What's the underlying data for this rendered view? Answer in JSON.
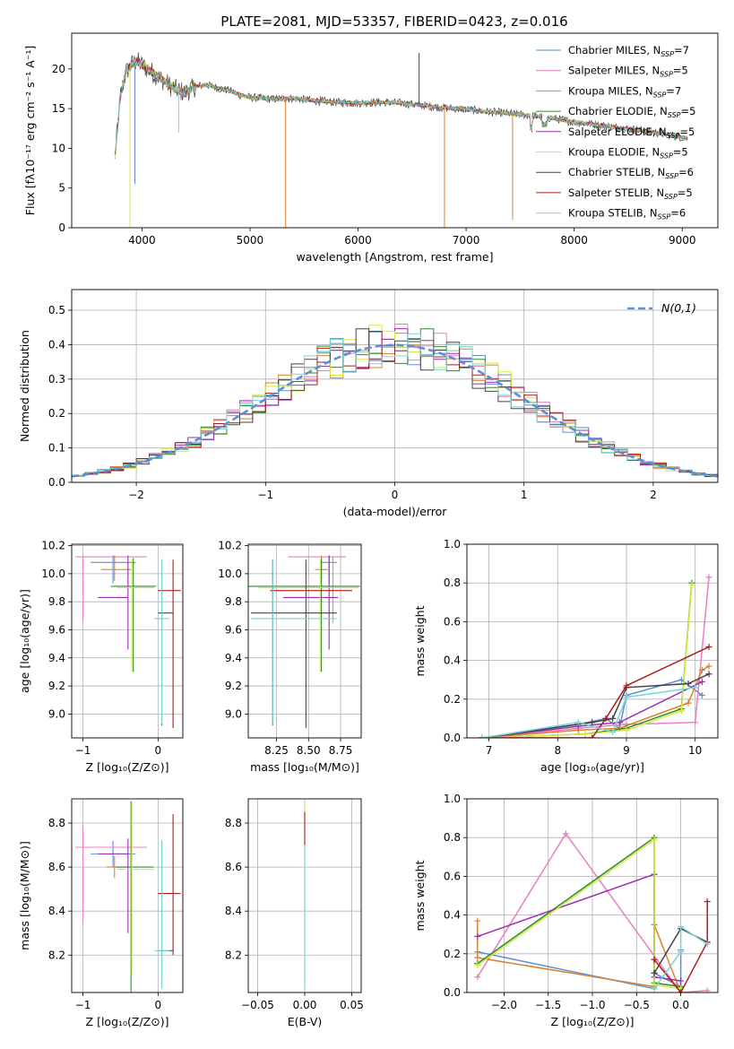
{
  "figure_title": "PLATE=2081, MJD=53357, FIBERID=0423, z=0.016",
  "colors": {
    "Chabrier MILES": "#5b8fd6",
    "Salpeter MILES": "#e87fbf",
    "Kroupa MILES": "#d9812a",
    "Chabrier ELODIE": "#2f8a2a",
    "Salpeter ELODIE": "#9a2fb0",
    "Kroupa ELODIE": "#d6e83a",
    "Chabrier STELIB": "#444444",
    "Salpeter STELIB": "#b01c1c",
    "Kroupa STELIB": "#72d6d6"
  },
  "chart_data": [
    {
      "id": "spectrum",
      "type": "line",
      "title": "PLATE=2081, MJD=53357, FIBERID=0423, z=0.016",
      "xlabel": "wavelength [Angstrom, rest frame]",
      "ylabel": "Flux [fλ10⁻¹⁷ erg cm⁻² s⁻¹ A⁻¹]",
      "xlim": [
        3350,
        9330
      ],
      "ylim": [
        0,
        24.5
      ],
      "xticks": [
        4000,
        5000,
        6000,
        7000,
        8000,
        9000
      ],
      "yticks": [
        0,
        5,
        10,
        15,
        20
      ],
      "legend_position": "top-right",
      "legend": [
        "Chabrier MILES, N_SSP=7",
        "Salpeter MILES, N_SSP=5",
        "Kroupa MILES, N_SSP=7",
        "Chabrier ELODIE, N_SSP=5",
        "Salpeter ELODIE, N_SSP=5",
        "Kroupa ELODIE, N_SSP=5",
        "Chabrier STELIB, N_SSP=6",
        "Salpeter STELIB, N_SSP=5",
        "Kroupa STELIB, N_SSP=6"
      ],
      "legend_parts": [
        [
          "Chabrier MILES, N",
          "SSP",
          "=7"
        ],
        [
          "Salpeter MILES, N",
          "SSP",
          "=5"
        ],
        [
          "Kroupa MILES, N",
          "SSP",
          "=7"
        ],
        [
          "Chabrier ELODIE, N",
          "SSP",
          "=5"
        ],
        [
          "Salpeter ELODIE, N",
          "SSP",
          "=5"
        ],
        [
          "Kroupa ELODIE, N",
          "SSP",
          "=5"
        ],
        [
          "Chabrier STELIB, N",
          "SSP",
          "=6"
        ],
        [
          "Salpeter STELIB, N",
          "SSP",
          "=5"
        ],
        [
          "Kroupa STELIB, N",
          "SSP",
          "=6"
        ]
      ],
      "data_x": [
        3750,
        3800,
        3850,
        3900,
        3950,
        4000,
        4100,
        4200,
        4300,
        4400,
        4500,
        4600,
        4700,
        4800,
        4900,
        5000,
        5200,
        5400,
        5600,
        5800,
        6000,
        6200,
        6400,
        6600,
        6800,
        7000,
        7200,
        7400,
        7600,
        7800,
        8000,
        8200,
        8400,
        8600,
        8800,
        9000,
        9050
      ],
      "data_y": [
        9.0,
        16.5,
        19.5,
        20.5,
        21.0,
        20.5,
        19.5,
        18.5,
        17.5,
        17.0,
        17.8,
        18.0,
        17.6,
        17.3,
        16.8,
        16.4,
        16.2,
        16.3,
        16.0,
        15.8,
        15.7,
        15.8,
        15.7,
        15.4,
        15.1,
        14.9,
        14.6,
        14.4,
        14.1,
        13.8,
        13.3,
        13.0,
        12.6,
        12.3,
        11.9,
        11.4,
        11.2
      ],
      "spikes": [
        [
          3890,
          0.0
        ],
        [
          3935,
          5.5
        ],
        [
          4340,
          12.0
        ],
        [
          5330,
          0.0
        ],
        [
          6565,
          22.0
        ],
        [
          6800,
          0.0
        ],
        [
          7430,
          1.0
        ]
      ]
    },
    {
      "id": "residuals",
      "type": "histogram",
      "xlabel": "(data-model)/error",
      "ylabel": "Normed distribution",
      "xlim": [
        -2.5,
        2.5
      ],
      "ylim": [
        0,
        0.56
      ],
      "xticks": [
        -2,
        -1,
        0,
        1,
        2
      ],
      "yticks": [
        0.0,
        0.1,
        0.2,
        0.3,
        0.4,
        0.5
      ],
      "legend_position": "top-right",
      "legend": [
        "N(0,1)"
      ],
      "reference": {
        "name": "N(0,1)",
        "mu": 0,
        "sigma": 1
      },
      "bin_width": 0.1
    },
    {
      "id": "z_age",
      "type": "errorbar",
      "xlabel": "Z [log₁₀(Z/Z⊙)]",
      "ylabel": "age  [log₁₀(age/yr)]",
      "xlim": [
        -1.15,
        0.33
      ],
      "ylim": [
        8.83,
        10.21
      ],
      "xticks": [
        -1,
        0
      ],
      "xtick_labels": [
        "−1",
        "0"
      ],
      "yticks": [
        9.0,
        9.2,
        9.4,
        9.6,
        9.8,
        10.0,
        10.2
      ],
      "points": [
        {
          "model": "Chabrier MILES",
          "x": -0.6,
          "y": 10.08,
          "xerr": [
            0.3,
            0.3
          ],
          "yerr": [
            0.15,
            0.05
          ]
        },
        {
          "model": "Salpeter MILES",
          "x": -1.0,
          "y": 10.12,
          "xerr": [
            0.1,
            0.85
          ],
          "yerr": [
            0.47,
            0.0
          ]
        },
        {
          "model": "Kroupa MILES",
          "x": -0.58,
          "y": 10.03,
          "xerr": [
            0.18,
            0.22
          ],
          "yerr": [
            0.08,
            0.1
          ]
        },
        {
          "model": "Chabrier ELODIE",
          "x": -0.33,
          "y": 9.91,
          "xerr": [
            0.3,
            0.3
          ],
          "yerr": [
            0.61,
            0.2
          ]
        },
        {
          "model": "Salpeter ELODIE",
          "x": -0.4,
          "y": 9.83,
          "xerr": [
            0.4,
            0.0
          ],
          "yerr": [
            0.37,
            0.3
          ]
        },
        {
          "model": "Kroupa ELODIE",
          "x": -0.35,
          "y": 9.9,
          "xerr": [
            0.2,
            0.3
          ],
          "yerr": [
            0.6,
            0.2
          ]
        },
        {
          "model": "Chabrier STELIB",
          "x": 0.05,
          "y": 9.72,
          "xerr": [
            0.05,
            0.15
          ],
          "yerr": [
            0.8,
            0.38
          ]
        },
        {
          "model": "Salpeter STELIB",
          "x": 0.2,
          "y": 9.88,
          "xerr": [
            0.2,
            0.1
          ],
          "yerr": [
            0.98,
            0.22
          ]
        },
        {
          "model": "Kroupa STELIB",
          "x": 0.05,
          "y": 9.68,
          "xerr": [
            0.1,
            0.1
          ],
          "yerr": [
            0.75,
            0.42
          ]
        }
      ]
    },
    {
      "id": "mass_age",
      "type": "errorbar",
      "xlabel": "mass [log₁₀(M/M⊙)]",
      "ylabel": "",
      "xlim": [
        8.03,
        8.91
      ],
      "ylim": [
        8.83,
        10.21
      ],
      "xticks": [
        8.25,
        8.5,
        8.75
      ],
      "xtick_labels": [
        "8.25",
        "8.50",
        "8.75"
      ],
      "yticks": [
        9.0,
        9.2,
        9.4,
        9.6,
        9.8,
        10.0,
        10.2
      ],
      "points": [
        {
          "model": "Chabrier MILES",
          "x": 8.66,
          "y": 10.08,
          "xerr": [
            0.06,
            0.06
          ],
          "yerr": [
            0.15,
            0.05
          ]
        },
        {
          "model": "Salpeter MILES",
          "x": 8.69,
          "y": 10.12,
          "xerr": [
            0.35,
            0.1
          ],
          "yerr": [
            0.47,
            0.0
          ]
        },
        {
          "model": "Kroupa MILES",
          "x": 8.6,
          "y": 10.03,
          "xerr": [
            0.05,
            0.05
          ],
          "yerr": [
            0.08,
            0.1
          ]
        },
        {
          "model": "Chabrier ELODIE",
          "x": 8.6,
          "y": 9.91,
          "xerr": [
            0.57,
            0.3
          ],
          "yerr": [
            0.61,
            0.2
          ]
        },
        {
          "model": "Salpeter ELODIE",
          "x": 8.66,
          "y": 9.83,
          "xerr": [
            0.36,
            0.07
          ],
          "yerr": [
            0.37,
            0.3
          ]
        },
        {
          "model": "Kroupa ELODIE",
          "x": 8.59,
          "y": 9.9,
          "xerr": [
            0.48,
            0.3
          ],
          "yerr": [
            0.6,
            0.2
          ]
        },
        {
          "model": "Chabrier STELIB",
          "x": 8.22,
          "y": 9.72,
          "xerr": [
            0.17,
            0.5
          ],
          "yerr": [
            0.8,
            0.38
          ]
        },
        {
          "model": "Salpeter STELIB",
          "x": 8.48,
          "y": 9.88,
          "xerr": [
            0.28,
            0.36
          ],
          "yerr": [
            0.98,
            0.22
          ]
        },
        {
          "model": "Kroupa STELIB",
          "x": 8.22,
          "y": 9.68,
          "xerr": [
            0.17,
            0.5
          ],
          "yerr": [
            0.75,
            0.42
          ]
        }
      ]
    },
    {
      "id": "age_weight",
      "type": "line",
      "xlabel": "age  [log₁₀(age/yr)]",
      "ylabel": "mass weight",
      "xlim": [
        6.68,
        10.33
      ],
      "ylim": [
        0,
        1.0
      ],
      "xticks": [
        7,
        8,
        9,
        10
      ],
      "yticks": [
        0.0,
        0.2,
        0.4,
        0.6,
        0.8,
        1.0
      ],
      "series": [
        {
          "model": "Chabrier MILES",
          "x": [
            6.9,
            8.3,
            8.7,
            8.9,
            9.0,
            9.8,
            10.1
          ],
          "y": [
            0.0,
            0.07,
            0.1,
            0.05,
            0.22,
            0.3,
            0.22
          ]
        },
        {
          "model": "Salpeter MILES",
          "x": [
            6.9,
            8.3,
            9.0,
            10.0,
            10.2
          ],
          "y": [
            0.0,
            0.05,
            0.07,
            0.08,
            0.83
          ]
        },
        {
          "model": "Kroupa MILES",
          "x": [
            6.9,
            8.3,
            8.9,
            9.9,
            10.1,
            10.2
          ],
          "y": [
            0.0,
            0.04,
            0.05,
            0.18,
            0.35,
            0.37
          ]
        },
        {
          "model": "Chabrier ELODIE",
          "x": [
            6.9,
            8.4,
            9.0,
            9.8,
            9.95
          ],
          "y": [
            0.0,
            0.02,
            0.05,
            0.15,
            0.8
          ]
        },
        {
          "model": "Salpeter ELODIE",
          "x": [
            6.9,
            8.3,
            8.9,
            10.1
          ],
          "y": [
            0.0,
            0.06,
            0.08,
            0.29
          ]
        },
        {
          "model": "Kroupa ELODIE",
          "x": [
            6.9,
            8.4,
            9.0,
            9.8,
            9.95
          ],
          "y": [
            0.0,
            0.02,
            0.04,
            0.14,
            0.79
          ]
        },
        {
          "model": "Chabrier STELIB",
          "x": [
            6.9,
            8.5,
            8.8,
            9.0,
            9.9,
            10.2
          ],
          "y": [
            0.0,
            0.08,
            0.1,
            0.26,
            0.28,
            0.33
          ]
        },
        {
          "model": "Salpeter STELIB",
          "x": [
            6.9,
            8.5,
            8.7,
            9.0,
            10.2
          ],
          "y": [
            0.0,
            0.0,
            0.1,
            0.27,
            0.47
          ]
        },
        {
          "model": "Kroupa STELIB",
          "x": [
            6.9,
            8.3,
            8.8,
            9.0,
            10.0
          ],
          "y": [
            0.0,
            0.08,
            0.03,
            0.21,
            0.26
          ]
        }
      ]
    },
    {
      "id": "z_mass",
      "type": "errorbar",
      "xlabel": "Z [log₁₀(Z/Z⊙)]",
      "ylabel": "mass [log₁₀(M/M⊙)]",
      "xlim": [
        -1.15,
        0.33
      ],
      "ylim": [
        8.03,
        8.91
      ],
      "xticks": [
        -1,
        0
      ],
      "xtick_labels": [
        "−1",
        "0"
      ],
      "yticks": [
        8.2,
        8.4,
        8.6,
        8.8
      ],
      "points": [
        {
          "model": "Chabrier MILES",
          "x": -0.6,
          "y": 8.66,
          "xerr": [
            0.3,
            0.3
          ],
          "yerr": [
            0.06,
            0.06
          ]
        },
        {
          "model": "Salpeter MILES",
          "x": -1.0,
          "y": 8.69,
          "xerr": [
            0.1,
            0.85
          ],
          "yerr": [
            0.35,
            0.1
          ]
        },
        {
          "model": "Kroupa MILES",
          "x": -0.58,
          "y": 8.6,
          "xerr": [
            0.1,
            0.2
          ],
          "yerr": [
            0.05,
            0.05
          ]
        },
        {
          "model": "Chabrier ELODIE",
          "x": -0.36,
          "y": 8.6,
          "xerr": [
            0.2,
            0.3
          ],
          "yerr": [
            0.57,
            0.3
          ]
        },
        {
          "model": "Salpeter ELODIE",
          "x": -0.4,
          "y": 8.66,
          "xerr": [
            0.4,
            0.0
          ],
          "yerr": [
            0.36,
            0.07
          ]
        },
        {
          "model": "Kroupa ELODIE",
          "x": -0.35,
          "y": 8.59,
          "xerr": [
            0.2,
            0.3
          ],
          "yerr": [
            0.48,
            0.3
          ]
        },
        {
          "model": "Chabrier STELIB",
          "x": 0.05,
          "y": 8.22,
          "xerr": [
            0.05,
            0.15
          ],
          "yerr": [
            0.17,
            0.5
          ]
        },
        {
          "model": "Salpeter STELIB",
          "x": 0.2,
          "y": 8.48,
          "xerr": [
            0.2,
            0.1
          ],
          "yerr": [
            0.28,
            0.36
          ]
        },
        {
          "model": "Kroupa STELIB",
          "x": 0.05,
          "y": 8.22,
          "xerr": [
            0.1,
            0.1
          ],
          "yerr": [
            0.17,
            0.5
          ]
        }
      ]
    },
    {
      "id": "ebv_mass",
      "type": "errorbar",
      "xlabel": "E(B-V)",
      "ylabel": "",
      "xlim": [
        -0.06,
        0.06
      ],
      "ylim": [
        8.03,
        8.91
      ],
      "xticks": [
        -0.05,
        0.0,
        0.05
      ],
      "xtick_labels": [
        "−0.05",
        "0.00",
        "0.05"
      ],
      "yticks": [
        8.2,
        8.4,
        8.6,
        8.8
      ],
      "points": [
        {
          "model": "Kroupa ELODIE",
          "x": 0.0,
          "y": 8.7,
          "xerr": [
            0,
            0
          ],
          "yerr": [
            0.64,
            0.18
          ]
        },
        {
          "model": "Salpeter STELIB",
          "x": 0.0,
          "y": 8.8,
          "xerr": [
            0,
            0
          ],
          "yerr": [
            0.1,
            0.05
          ]
        },
        {
          "model": "Kroupa STELIB",
          "x": 0.0,
          "y": 8.45,
          "xerr": [
            0,
            0
          ],
          "yerr": [
            0.4,
            0.25
          ]
        }
      ]
    },
    {
      "id": "z_weight",
      "type": "line",
      "xlabel": "Z [log₁₀(Z/Z⊙)]",
      "ylabel": "mass weight",
      "xlim": [
        -2.42,
        0.42
      ],
      "ylim": [
        0,
        1.0
      ],
      "xticks": [
        -2.0,
        -1.5,
        -1.0,
        -0.5,
        0.0
      ],
      "xtick_labels": [
        "−2.0",
        "−1.5",
        "−1.0",
        "−0.5",
        "0.0"
      ],
      "yticks": [
        0.0,
        0.2,
        0.4,
        0.6,
        0.8,
        1.0
      ],
      "series": [
        {
          "model": "Chabrier MILES",
          "x": [
            -2.3,
            -0.3,
            -0.3,
            0.0,
            0.0
          ],
          "y": [
            0.21,
            0.02,
            0.1,
            0.03,
            0.22
          ]
        },
        {
          "model": "Salpeter MILES",
          "x": [
            -2.3,
            -1.3,
            0.0,
            0.3
          ],
          "y": [
            0.08,
            0.82,
            0.0,
            0.01
          ]
        },
        {
          "model": "Kroupa MILES",
          "x": [
            -2.3,
            -2.3,
            -0.3,
            -0.3,
            0.0
          ],
          "y": [
            0.37,
            0.18,
            0.03,
            0.35,
            0.0
          ]
        },
        {
          "model": "Chabrier ELODIE",
          "x": [
            -2.3,
            -0.3,
            -0.3,
            0.0
          ],
          "y": [
            0.15,
            0.8,
            0.05,
            0.03
          ]
        },
        {
          "model": "Salpeter ELODIE",
          "x": [
            -2.3,
            -0.3,
            -0.3,
            0.0
          ],
          "y": [
            0.29,
            0.61,
            0.08,
            0.06
          ]
        },
        {
          "model": "Kroupa ELODIE",
          "x": [
            -2.3,
            -0.3,
            -0.3,
            0.0
          ],
          "y": [
            0.14,
            0.79,
            0.04,
            0.02
          ]
        },
        {
          "model": "Chabrier STELIB",
          "x": [
            -0.3,
            0.0,
            0.3
          ],
          "y": [
            0.1,
            0.33,
            0.26
          ]
        },
        {
          "model": "Salpeter STELIB",
          "x": [
            -0.3,
            0.0,
            0.3,
            0.3
          ],
          "y": [
            0.17,
            0.0,
            0.26,
            0.47
          ]
        },
        {
          "model": "Kroupa STELIB",
          "x": [
            -0.3,
            0.0,
            0.0,
            0.3
          ],
          "y": [
            0.02,
            0.21,
            0.34,
            0.25
          ]
        }
      ]
    }
  ]
}
